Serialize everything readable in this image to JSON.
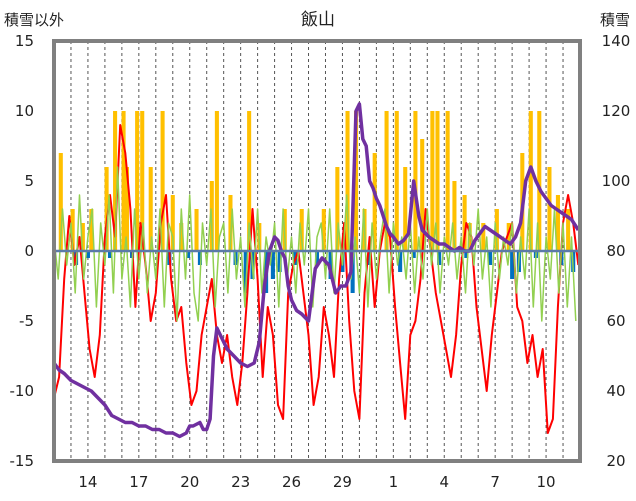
{
  "chart_data": {
    "type": "line",
    "title": "飯山",
    "ylabel_left": "積雪以外",
    "ylabel_right": "積雪",
    "y_left": {
      "min": -15,
      "max": 15,
      "ticks": [
        15,
        10,
        5,
        0,
        -5,
        -10,
        -15
      ]
    },
    "y_right": {
      "min": 20,
      "max": 140,
      "ticks": [
        140,
        120,
        100,
        80,
        60,
        40,
        20
      ]
    },
    "x_tick_labels": [
      "14",
      "17",
      "20",
      "23",
      "26",
      "29",
      "1",
      "4",
      "7",
      "10"
    ],
    "x_tick_days": [
      2,
      5,
      8,
      11,
      14,
      17,
      20,
      23,
      26,
      29
    ],
    "x_days": 31,
    "grid": "dashed vertical daily lines",
    "colors": {
      "precip": "#FFC000",
      "snow_depth": "#7030A0",
      "temperature": "#FF0000",
      "green_series": "#92D050",
      "blue_series": "#0070C0"
    },
    "series": [
      {
        "key": "temperature",
        "axis": "left",
        "color": "#FF0000",
        "width": 2,
        "x": [
          0,
          0.3,
          0.6,
          0.9,
          1.2,
          1.5,
          1.8,
          2.1,
          2.4,
          2.7,
          3.0,
          3.3,
          3.6,
          3.9,
          4.2,
          4.5,
          4.8,
          5.1,
          5.4,
          5.7,
          6.0,
          6.3,
          6.6,
          6.9,
          7.2,
          7.5,
          7.8,
          8.1,
          8.4,
          8.7,
          9.0,
          9.3,
          9.6,
          9.9,
          10.2,
          10.5,
          10.8,
          11.1,
          11.4,
          11.7,
          12.0,
          12.3,
          12.6,
          12.9,
          13.2,
          13.5,
          13.8,
          14.1,
          14.4,
          14.7,
          15.0,
          15.3,
          15.6,
          15.9,
          16.2,
          16.5,
          16.8,
          17.1,
          17.4,
          17.7,
          18.0,
          18.3,
          18.6,
          18.9,
          19.2,
          19.5,
          19.8,
          20.1,
          20.4,
          20.7,
          21.0,
          21.3,
          21.6,
          21.9,
          22.2,
          22.5,
          22.8,
          23.1,
          23.4,
          23.7,
          24.0,
          24.3,
          24.6,
          24.9,
          25.2,
          25.5,
          25.8,
          26.1,
          26.4,
          26.7,
          27.0,
          27.3,
          27.6,
          27.9,
          28.2,
          28.5,
          28.8,
          29.1,
          29.4,
          29.7,
          30.0,
          30.3,
          30.6,
          30.9
        ],
        "y": [
          -10.5,
          -9,
          -2,
          2.5,
          -1,
          1,
          -3,
          -7,
          -9,
          -6,
          1,
          4,
          1,
          9,
          7,
          3,
          -4,
          2,
          -1,
          -5,
          -3,
          2,
          4,
          -2,
          -5,
          -4,
          -8,
          -11,
          -10,
          -6,
          -4,
          -2,
          -6,
          -8,
          -6,
          -9,
          -11,
          -8,
          -3,
          3,
          -2,
          -9,
          -4,
          -6,
          -11,
          -12,
          -3,
          -1,
          0,
          -3,
          -6,
          -11,
          -9,
          -4,
          -6,
          -9,
          -2,
          2,
          -5,
          -10,
          -12,
          -3,
          1,
          -4,
          0,
          2,
          1,
          -4,
          -8,
          -12,
          -6,
          -5,
          -2,
          3,
          0,
          -3,
          -5,
          -7,
          -9,
          -6,
          -1,
          2,
          1,
          -4,
          -7,
          -10,
          -6,
          -3,
          0,
          1,
          2,
          -4,
          -5,
          -8,
          -6,
          -9,
          -7,
          -13,
          -12,
          -4,
          2,
          4,
          2,
          -1
        ],
        "smooth": false
      },
      {
        "key": "green_series",
        "axis": "left",
        "color": "#92D050",
        "width": 1.5,
        "x": [
          0,
          0.25,
          0.5,
          0.75,
          1.0,
          1.25,
          1.5,
          1.75,
          2.0,
          2.25,
          2.5,
          2.75,
          3.0,
          3.25,
          3.5,
          3.75,
          4.0,
          4.25,
          4.5,
          4.75,
          5.0,
          5.25,
          5.5,
          5.75,
          6.0,
          6.25,
          6.5,
          6.75,
          7.0,
          7.25,
          7.5,
          7.75,
          8.0,
          8.25,
          8.5,
          8.75,
          9.0,
          9.25,
          9.5,
          9.75,
          10.0,
          10.25,
          10.5,
          10.75,
          11.0,
          11.25,
          11.5,
          11.75,
          12.0,
          12.25,
          12.5,
          12.75,
          13.0,
          13.25,
          13.5,
          13.75,
          14.0,
          14.25,
          14.5,
          14.75,
          15.0,
          15.25,
          15.5,
          15.75,
          16.0,
          16.25,
          16.5,
          16.75,
          17.0,
          17.25,
          17.5,
          17.75,
          18.0,
          18.25,
          18.5,
          18.75,
          19.0,
          19.25,
          19.5,
          19.75,
          20.0,
          20.25,
          20.5,
          20.75,
          21.0,
          21.25,
          21.5,
          21.75,
          22.0,
          22.25,
          22.5,
          22.75,
          23.0,
          23.25,
          23.5,
          23.75,
          24.0,
          24.25,
          24.5,
          24.75,
          25.0,
          25.25,
          25.5,
          25.75,
          26.0,
          26.25,
          26.5,
          26.75,
          27.0,
          27.25,
          27.5,
          27.75,
          28.0,
          28.25,
          28.5,
          28.75,
          29.0,
          29.25,
          29.5,
          29.75,
          30.0,
          30.25,
          30.5,
          30.75
        ],
        "y": [
          1,
          -2,
          3,
          -1,
          2,
          -3,
          4,
          -2,
          1,
          3,
          -4,
          2,
          -1,
          4,
          -3,
          6,
          -2,
          1,
          -4,
          3,
          -2,
          2,
          -3,
          1,
          -2,
          3,
          -4,
          2,
          1,
          -5,
          3,
          -2,
          4,
          -3,
          -5,
          2,
          -1,
          3,
          -4,
          1,
          2,
          -3,
          3,
          -2,
          1,
          -4,
          2,
          -2,
          3,
          -3,
          1,
          -1,
          2,
          -4,
          3,
          -2,
          1,
          -3,
          2,
          -1,
          3,
          -4,
          1,
          2,
          -2,
          3,
          -3,
          2,
          -1,
          4,
          -2,
          1,
          -3,
          3,
          -4,
          2,
          -2,
          1,
          3,
          -3,
          2,
          -1,
          1,
          -2,
          2,
          -3,
          1,
          -2,
          3,
          -1,
          2,
          -3,
          1,
          -1,
          2,
          -2,
          1,
          -3,
          2,
          -1,
          3,
          -2,
          1,
          -4,
          2,
          -2,
          1,
          -1,
          2,
          -3,
          1,
          -2,
          3,
          -4,
          2,
          -5,
          1,
          -2,
          3,
          -3,
          2,
          -4,
          1,
          -5
        ],
        "smooth": false
      },
      {
        "key": "snow_depth",
        "axis": "right",
        "color": "#7030A0",
        "width": 3.5,
        "x": [
          0,
          0.3,
          0.6,
          1.0,
          1.4,
          1.8,
          2.2,
          2.6,
          3.0,
          3.4,
          3.8,
          4.2,
          4.6,
          5.0,
          5.4,
          5.8,
          6.2,
          6.6,
          7.0,
          7.4,
          7.8,
          8.0,
          8.2,
          8.6,
          8.8,
          9.0,
          9.2,
          9.4,
          9.6,
          9.8,
          10.0,
          10.2,
          10.6,
          11.0,
          11.4,
          11.8,
          12.1,
          12.4,
          12.7,
          13.0,
          13.2,
          13.4,
          13.6,
          13.8,
          14.0,
          14.3,
          14.6,
          15.0,
          15.4,
          15.8,
          16.2,
          16.6,
          16.9,
          17.2,
          17.5,
          17.8,
          18.0,
          18.2,
          18.4,
          18.6,
          18.8,
          19.0,
          19.2,
          19.4,
          19.6,
          19.8,
          20.0,
          20.3,
          20.6,
          20.9,
          21.2,
          21.5,
          21.7,
          21.9,
          22.1,
          22.4,
          22.7,
          23.0,
          23.3,
          23.6,
          23.9,
          24.2,
          24.5,
          24.8,
          25.1,
          25.4,
          25.7,
          26.0,
          26.3,
          26.6,
          26.9,
          27.2,
          27.5,
          27.8,
          28.1,
          28.4,
          28.7,
          29.0,
          29.3,
          29.6,
          29.9,
          30.2,
          30.5,
          30.9
        ],
        "y": [
          48,
          46,
          45,
          43,
          42,
          41,
          40,
          38,
          36,
          33,
          32,
          31,
          31,
          30,
          30,
          29,
          29,
          28,
          28,
          27,
          28,
          30,
          30,
          31,
          29,
          29,
          32,
          50,
          58,
          56,
          54,
          52,
          50,
          48,
          47,
          48,
          54,
          70,
          80,
          84,
          83,
          80,
          78,
          70,
          66,
          63,
          62,
          60,
          75,
          78,
          76,
          68,
          70,
          70,
          74,
          120,
          122,
          112,
          110,
          100,
          98,
          95,
          93,
          90,
          87,
          85,
          84,
          82,
          83,
          85,
          100,
          90,
          86,
          85,
          84,
          83,
          82,
          82,
          81,
          80,
          81,
          80,
          80,
          83,
          85,
          87,
          86,
          85,
          84,
          83,
          82,
          84,
          88,
          100,
          104,
          100,
          97,
          95,
          93,
          92,
          91,
          90,
          89,
          86
        ],
        "smooth": false
      }
    ],
    "bars_positive": {
      "key": "precip",
      "axis": "left",
      "color": "#FFC000",
      "x": [
        0.4,
        1.1,
        1.7,
        2.2,
        3.1,
        3.6,
        4.1,
        4.3,
        4.9,
        5.2,
        5.7,
        6.4,
        7.0,
        7.5,
        8.4,
        9.3,
        9.6,
        10.4,
        11.5,
        12.1,
        13.6,
        14.6,
        15.9,
        16.7,
        17.3,
        17.8,
        18.3,
        18.9,
        19.6,
        20.2,
        20.7,
        21.3,
        21.7,
        22.3,
        22.6,
        23.2,
        23.6,
        24.2,
        24.5,
        25.3,
        26.1,
        26.8,
        27.6,
        28.1,
        28.6,
        29.2,
        29.7,
        30.3
      ],
      "y": [
        7,
        3,
        2,
        3,
        6,
        10,
        10,
        6,
        10,
        10,
        6,
        10,
        4,
        2,
        3,
        5,
        10,
        4,
        10,
        2,
        3,
        3,
        3,
        6,
        10,
        10,
        3,
        7,
        10,
        10,
        6,
        10,
        8,
        10,
        10,
        10,
        5,
        4,
        2,
        2,
        3,
        2,
        7,
        10,
        10,
        6,
        4,
        3
      ],
      "width_days": 0.08
    },
    "bars_negative": {
      "key": "blue_series",
      "axis": "left",
      "color": "#0070C0",
      "x": [
        1.3,
        2.0,
        3.3,
        4.6,
        6.8,
        7.9,
        8.6,
        10.7,
        11.3,
        11.7,
        12.5,
        12.9,
        13.3,
        14.2,
        15.5,
        16.3,
        17.0,
        17.6,
        18.6,
        20.4,
        21.2,
        22.7,
        24.3,
        25.7,
        27.0,
        27.4,
        28.4,
        29.9,
        30.6
      ],
      "y": [
        -1,
        -0.5,
        -0.5,
        -0.5,
        -1,
        -0.5,
        -1,
        -1,
        -3,
        -2,
        -3,
        -2,
        -1.5,
        -1,
        -1,
        -2,
        -1.5,
        -3,
        -1,
        -1.5,
        -0.5,
        -1,
        -0.5,
        -1,
        -2,
        -1.5,
        -0.5,
        -1,
        -1.5
      ],
      "width_days": 0.08
    }
  }
}
